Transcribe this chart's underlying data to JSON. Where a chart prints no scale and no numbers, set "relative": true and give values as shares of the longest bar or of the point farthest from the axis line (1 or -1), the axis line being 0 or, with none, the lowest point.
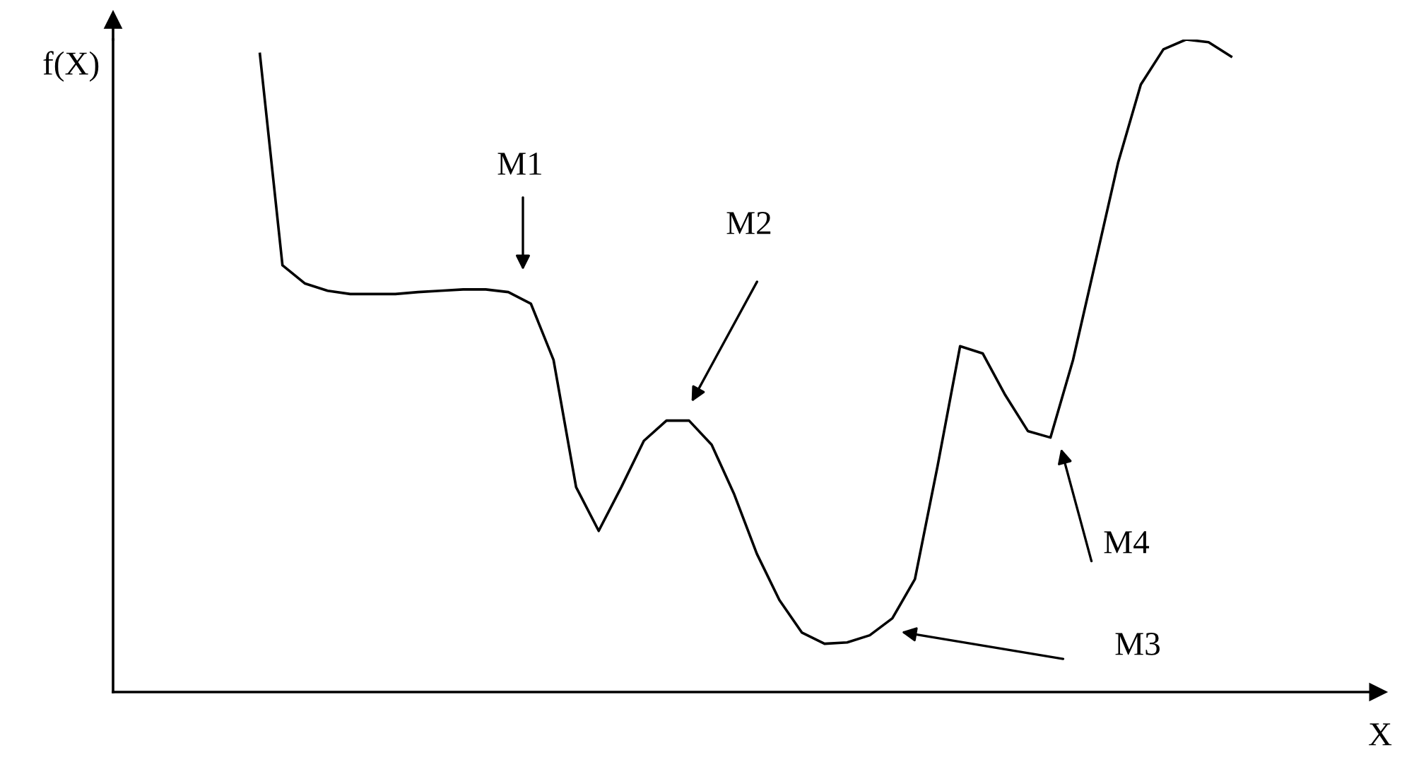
{
  "chart_data": {
    "type": "line",
    "relative": true,
    "xlabel": "X",
    "ylabel": "f(X)",
    "color": "#000000",
    "marker": "none",
    "line_style": "solid",
    "grid": false,
    "categories": [
      null,
      null,
      null,
      null,
      null,
      null,
      null,
      null,
      null,
      null,
      null,
      null,
      null,
      null,
      null,
      null,
      null,
      null,
      null,
      null,
      null,
      null,
      null,
      null,
      null,
      null,
      null,
      null,
      null,
      null,
      null,
      null,
      null,
      null,
      null,
      null,
      null,
      null,
      null,
      null,
      null,
      null,
      null,
      null,
      null,
      null,
      null,
      null,
      null,
      null,
      null,
      null,
      null,
      null,
      null,
      null
    ],
    "values": [
      null,
      null,
      null,
      null,
      null,
      null,
      0.978,
      0.654,
      0.626,
      0.615,
      0.61,
      0.61,
      0.61,
      0.613,
      0.615,
      0.617,
      0.617,
      0.613,
      0.595,
      0.509,
      0.314,
      0.247,
      0.314,
      0.385,
      0.416,
      0.416,
      0.379,
      0.303,
      0.212,
      0.141,
      0.091,
      0.074,
      0.076,
      0.087,
      0.113,
      0.173,
      0.346,
      0.53,
      0.519,
      0.455,
      0.4,
      0.39,
      0.509,
      0.66,
      0.812,
      0.931,
      0.985,
      1.0,
      0.996,
      0.974,
      null,
      null,
      null,
      null,
      null,
      null
    ],
    "annotations": [
      "M1",
      "M2",
      "M3",
      "M4"
    ]
  }
}
